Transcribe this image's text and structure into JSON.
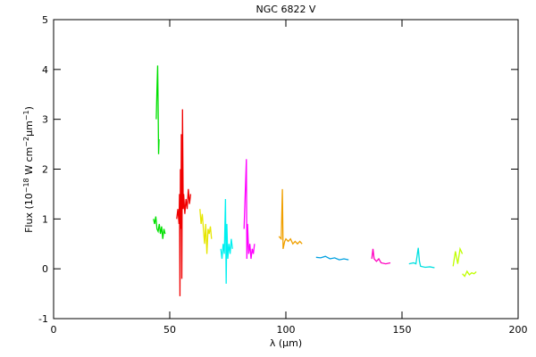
{
  "chart_data": {
    "type": "line",
    "title": "NGC 6822 V",
    "xlabel": "λ (μm)",
    "ylabel": [
      "Flux (10",
      "−18",
      " W cm",
      "−2",
      "μm",
      "−1",
      ")"
    ],
    "xlim": [
      0,
      200
    ],
    "xticks": [
      0,
      50,
      100,
      150,
      200
    ],
    "ylim": [
      -1,
      5
    ],
    "yticks": [
      -1,
      0,
      1,
      2,
      3,
      4,
      5
    ],
    "series": [
      {
        "color": "#00e000",
        "x": [
          44.2,
          44.5,
          44.8,
          45,
          45.2,
          45.4
        ],
        "values": [
          3.0,
          3.6,
          4.08,
          3.3,
          2.3,
          2.6
        ]
      },
      {
        "color": "#00e000",
        "x": [
          43,
          43.5,
          44,
          44.5,
          45,
          45.5,
          46,
          46.5,
          47,
          47.5,
          48
        ],
        "values": [
          1.0,
          0.9,
          1.05,
          0.8,
          0.75,
          0.9,
          0.7,
          0.85,
          0.6,
          0.8,
          0.7
        ]
      },
      {
        "color": "#f00000",
        "x": [
          53,
          53.5,
          54,
          54.2,
          54.4,
          54.6,
          54.8,
          55,
          55.2,
          55.5,
          55.8,
          56,
          56.5,
          57,
          57.5,
          58,
          58.5,
          59
        ],
        "values": [
          1.0,
          1.2,
          0.9,
          1.5,
          -0.55,
          2.0,
          0.8,
          2.7,
          -0.2,
          3.2,
          1.2,
          1.5,
          1.1,
          1.4,
          1.2,
          1.6,
          1.3,
          1.5
        ]
      },
      {
        "color": "#e6e600",
        "x": [
          63,
          63.5,
          64,
          64.5,
          65,
          65.5,
          66,
          66.5,
          67,
          67.5,
          68
        ],
        "values": [
          1.2,
          0.9,
          1.1,
          0.8,
          0.5,
          0.9,
          0.3,
          0.8,
          0.7,
          0.85,
          0.6
        ]
      },
      {
        "color": "#00f0f0",
        "x": [
          72,
          72.5,
          73,
          73.5,
          74,
          74.3,
          74.6,
          75,
          75.5,
          76,
          76.5,
          77
        ],
        "values": [
          0.4,
          0.2,
          0.5,
          0.3,
          1.4,
          -0.3,
          0.9,
          0.2,
          0.5,
          0.3,
          0.6,
          0.4
        ]
      },
      {
        "color": "#ff00ff",
        "x": [
          82,
          82.5,
          83,
          83.2,
          83.5,
          84,
          84.5,
          85,
          85.5,
          86,
          86.5
        ],
        "values": [
          0.8,
          1.5,
          2.2,
          0.2,
          0.9,
          0.3,
          0.5,
          0.2,
          0.4,
          0.3,
          0.5
        ]
      },
      {
        "color": "#f0a000",
        "x": [
          97,
          98,
          98.5,
          98.8,
          99.5,
          100,
          101,
          102,
          103,
          104,
          105,
          106,
          107
        ],
        "values": [
          0.65,
          0.6,
          1.6,
          0.4,
          0.55,
          0.6,
          0.55,
          0.6,
          0.5,
          0.55,
          0.5,
          0.55,
          0.5
        ]
      },
      {
        "color": "#00a0e0",
        "x": [
          113,
          115,
          117,
          119,
          121,
          123,
          125,
          127
        ],
        "values": [
          0.23,
          0.22,
          0.25,
          0.2,
          0.22,
          0.18,
          0.2,
          0.18
        ]
      },
      {
        "color": "#ff00c0",
        "x": [
          137,
          137.5,
          138,
          139,
          140,
          141,
          143,
          145
        ],
        "values": [
          0.2,
          0.4,
          0.2,
          0.15,
          0.2,
          0.12,
          0.1,
          0.12
        ]
      },
      {
        "color": "#00e0e0",
        "x": [
          153,
          155,
          156,
          157,
          157.5,
          158,
          160,
          162,
          164
        ],
        "values": [
          0.1,
          0.12,
          0.1,
          0.42,
          0.15,
          0.05,
          0.03,
          0.04,
          0.02
        ]
      },
      {
        "color": "#c0ff00",
        "x": [
          172,
          173,
          174,
          175,
          176
        ],
        "values": [
          0.05,
          0.35,
          0.1,
          0.4,
          0.3
        ]
      },
      {
        "color": "#c0ff00",
        "x": [
          176,
          177,
          178,
          179,
          180,
          181,
          182
        ],
        "values": [
          -0.1,
          -0.15,
          -0.05,
          -0.12,
          -0.08,
          -0.1,
          -0.06
        ]
      }
    ]
  }
}
